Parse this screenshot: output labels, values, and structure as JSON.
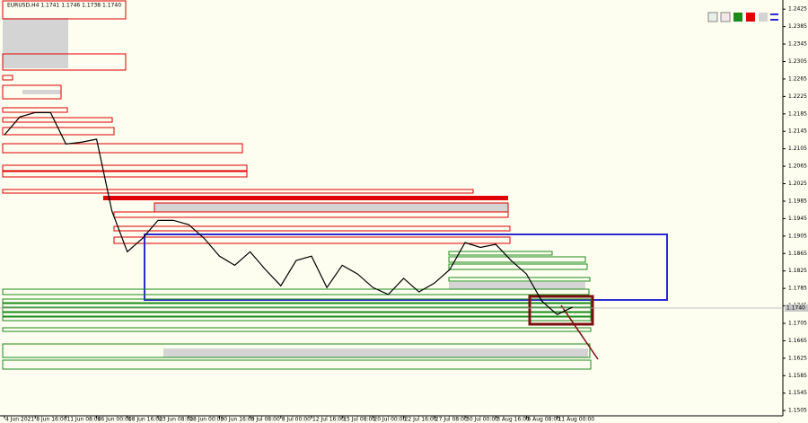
{
  "chart_data": {
    "type": "line",
    "title": "EURUSD,H4  1.1741 1.1746 1.1738 1.1740",
    "price_label": "1.1740",
    "categories": [
      "4 Jun 2021",
      null,
      "8 Jun 16:00",
      null,
      "11 Jun 08:00",
      null,
      "16 Jun 00:00",
      null,
      "18 Jun 16:00",
      null,
      "23 Jun 08:00",
      null,
      "28 Jun 00:00",
      null,
      "30 Jun 16:00",
      null,
      "5 Jul 08:00",
      null,
      "8 Jul 00:00",
      null,
      "12 Jul 16:00",
      null,
      "15 Jul 08:00",
      null,
      "20 Jul 00:00",
      null,
      "22 Jul 16:00",
      null,
      "27 Jul 08:00",
      null,
      "30 Jul 00:00",
      null,
      "3 Aug 16:00",
      null,
      "6 Aug 08:00",
      null,
      "11 Aug 00:00",
      null
    ],
    "series": [
      {
        "name": "EURUSD",
        "color": "#000000",
        "values": [
          1.2137,
          1.2178,
          1.2188,
          1.2188,
          1.2116,
          1.212,
          1.2127,
          1.1962,
          1.1869,
          1.19,
          1.1941,
          1.1941,
          1.1931,
          1.19,
          1.1859,
          1.1838,
          1.1869,
          1.1828,
          1.1791,
          1.1849,
          1.1859,
          1.1787,
          1.1838,
          1.1818,
          1.1787,
          1.1771,
          1.1808,
          1.1777,
          1.1797,
          1.1828,
          1.189,
          1.1879,
          1.1886,
          1.1849,
          1.1818,
          1.1756,
          1.1725,
          1.1742
        ]
      }
    ],
    "ylim": [
      1.1493,
      1.2446
    ],
    "yticks": [
      1.2425,
      1.2385,
      1.2345,
      1.2305,
      1.2265,
      1.2225,
      1.2185,
      1.2145,
      1.2105,
      1.2065,
      1.2025,
      1.1985,
      1.1945,
      1.1905,
      1.1865,
      1.1825,
      1.1785,
      1.1745,
      1.1705,
      1.1665,
      1.1625,
      1.1585,
      1.1545,
      1.1505
    ],
    "current_price": 1.174,
    "grid": false
  }
}
